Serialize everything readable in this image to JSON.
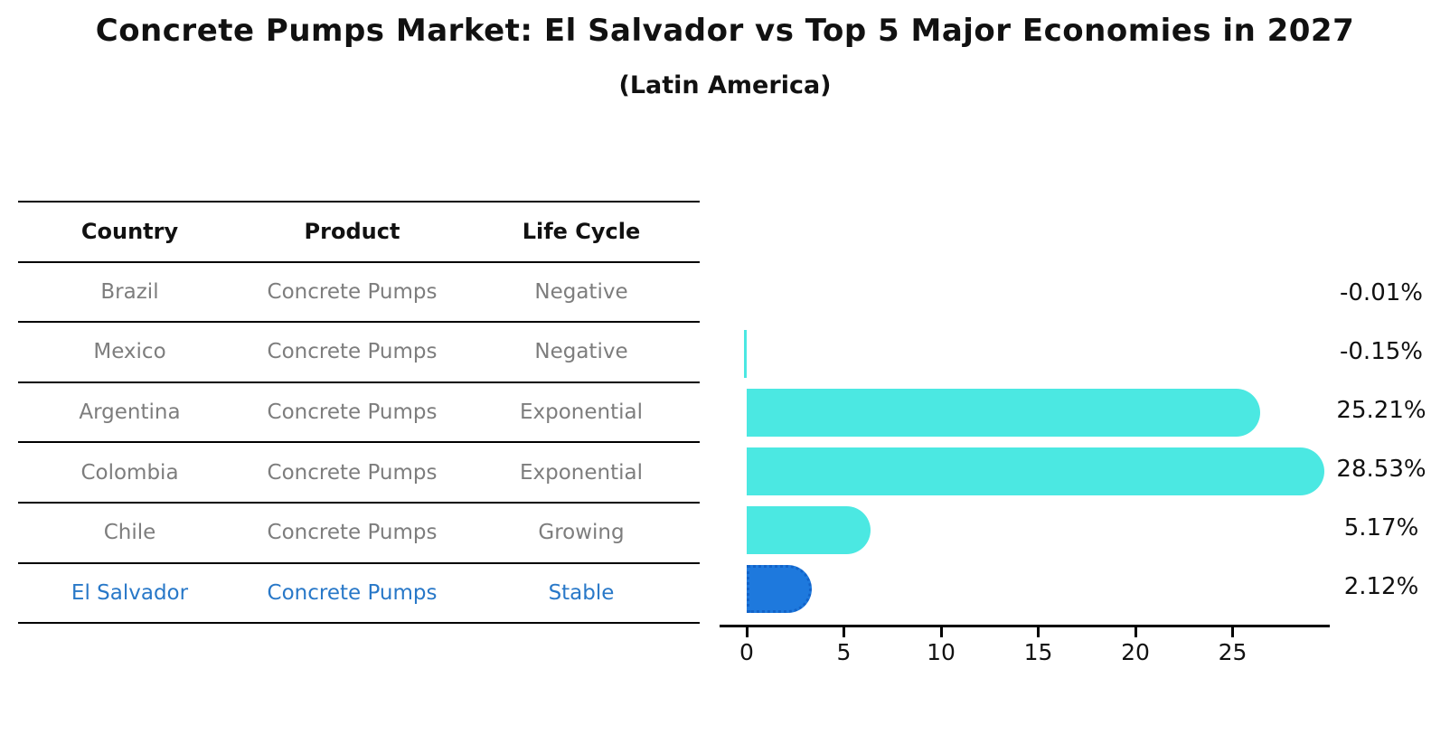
{
  "title": "Concrete Pumps Market: El Salvador vs Top 5 Major Economies in 2027",
  "subtitle": "(Latin America)",
  "table": {
    "columns": [
      "Country",
      "Product",
      "Life Cycle"
    ],
    "rows": [
      {
        "country": "Brazil",
        "product": "Concrete Pumps",
        "life_cycle": "Negative",
        "highlight": false
      },
      {
        "country": "Mexico",
        "product": "Concrete Pumps",
        "life_cycle": "Negative",
        "highlight": false
      },
      {
        "country": "Argentina",
        "product": "Concrete Pumps",
        "life_cycle": "Exponential",
        "highlight": false
      },
      {
        "country": "Colombia",
        "product": "Concrete Pumps",
        "life_cycle": "Exponential",
        "highlight": false
      },
      {
        "country": "Chile",
        "product": "Concrete Pumps",
        "life_cycle": "Growing",
        "highlight": false
      },
      {
        "country": "El Salvador",
        "product": "Concrete Pumps",
        "life_cycle": "Stable",
        "highlight": true
      }
    ]
  },
  "chart_data": {
    "type": "bar",
    "orientation": "horizontal",
    "title": "Concrete Pumps Market: El Salvador vs Top 5 Major Economies in 2027",
    "subtitle": "(Latin America)",
    "categories": [
      "Brazil",
      "Mexico",
      "Argentina",
      "Colombia",
      "Chile",
      "El Salvador"
    ],
    "values": [
      -0.01,
      -0.15,
      25.21,
      28.53,
      5.17,
      2.12
    ],
    "value_labels": [
      "-0.01%",
      "-0.15%",
      "25.21%",
      "28.53%",
      "5.17%",
      "2.12%"
    ],
    "xticks": [
      0,
      5,
      10,
      15,
      20,
      25
    ],
    "xlim": [
      -1.4,
      30
    ],
    "xlabel": "",
    "ylabel": "",
    "grid": false,
    "legend": false,
    "highlight_category": "El Salvador",
    "bar_color": "#4BE8E2",
    "highlight_color": "#1E79DD"
  },
  "colors": {
    "bar": "#4BE8E2",
    "highlight_bar": "#1E79DD",
    "highlight_text": "#2878C8",
    "muted_text": "#7D7D7D",
    "text": "#111111",
    "axis": "#000000"
  }
}
